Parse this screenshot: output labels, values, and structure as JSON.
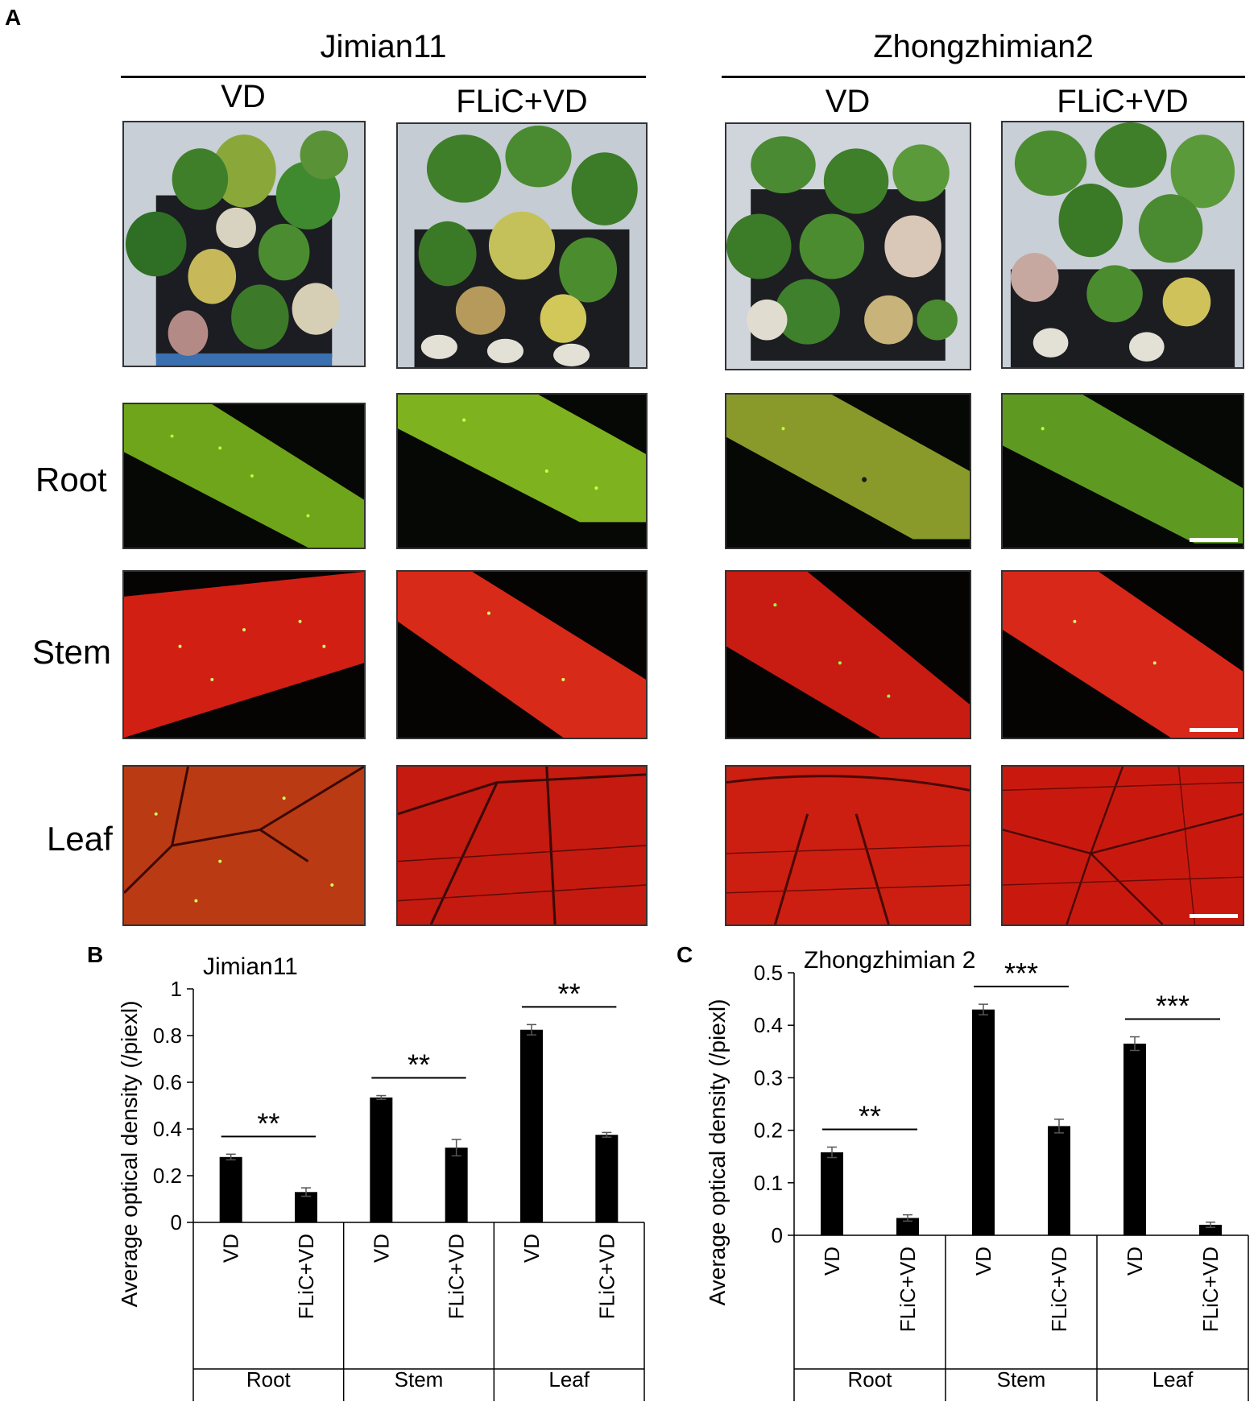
{
  "panel_labels": {
    "a": "A",
    "b": "B",
    "c": "C"
  },
  "cultivars": [
    "Jimian11",
    "Zhongzhimian2"
  ],
  "treatments": [
    "VD",
    "FLiC+VD"
  ],
  "row_labels": [
    "Root",
    "Stem",
    "Leaf"
  ],
  "colors": {
    "root_fluor": "#6ea51a",
    "stem_fluor": "#d21f14",
    "leaf_fluor": "#c0180f",
    "gfp_dot": "#b8ff3a",
    "plant_leaf": "#3f7f2a",
    "plant_yellow": "#c9c24a",
    "bar": "#000000"
  },
  "chart_data": [
    {
      "type": "bar",
      "title": "Jimian11",
      "ylabel": "Average optical density (/piexl)",
      "ylim": [
        0,
        1
      ],
      "yticks": [
        "0",
        "0.2",
        "0.4",
        "0.6",
        "0.8",
        "1"
      ],
      "groups": [
        "Root",
        "Stem",
        "Leaf"
      ],
      "categories": [
        "VD",
        "FLiC+VD",
        "VD",
        "FLiC+VD",
        "VD",
        "FLiC+VD"
      ],
      "values": [
        0.28,
        0.13,
        0.535,
        0.32,
        0.825,
        0.375
      ],
      "errors": [
        0.012,
        0.018,
        0.008,
        0.035,
        0.022,
        0.01
      ],
      "significance": [
        "**",
        "**",
        "**"
      ]
    },
    {
      "type": "bar",
      "title": "Zhongzhimian 2",
      "ylabel": "Average optical density (/piexl)",
      "ylim": [
        0,
        0.5
      ],
      "yticks": [
        "0",
        "0.1",
        "0.2",
        "0.3",
        "0.4",
        "0.5"
      ],
      "groups": [
        "Root",
        "Stem",
        "Leaf"
      ],
      "categories": [
        "VD",
        "FLiC+VD",
        "VD",
        "FLiC+VD",
        "VD",
        "FLiC+VD"
      ],
      "values": [
        0.158,
        0.033,
        0.43,
        0.208,
        0.365,
        0.02
      ],
      "errors": [
        0.01,
        0.006,
        0.01,
        0.013,
        0.013,
        0.005
      ],
      "significance": [
        "**",
        "***",
        "***"
      ]
    }
  ]
}
